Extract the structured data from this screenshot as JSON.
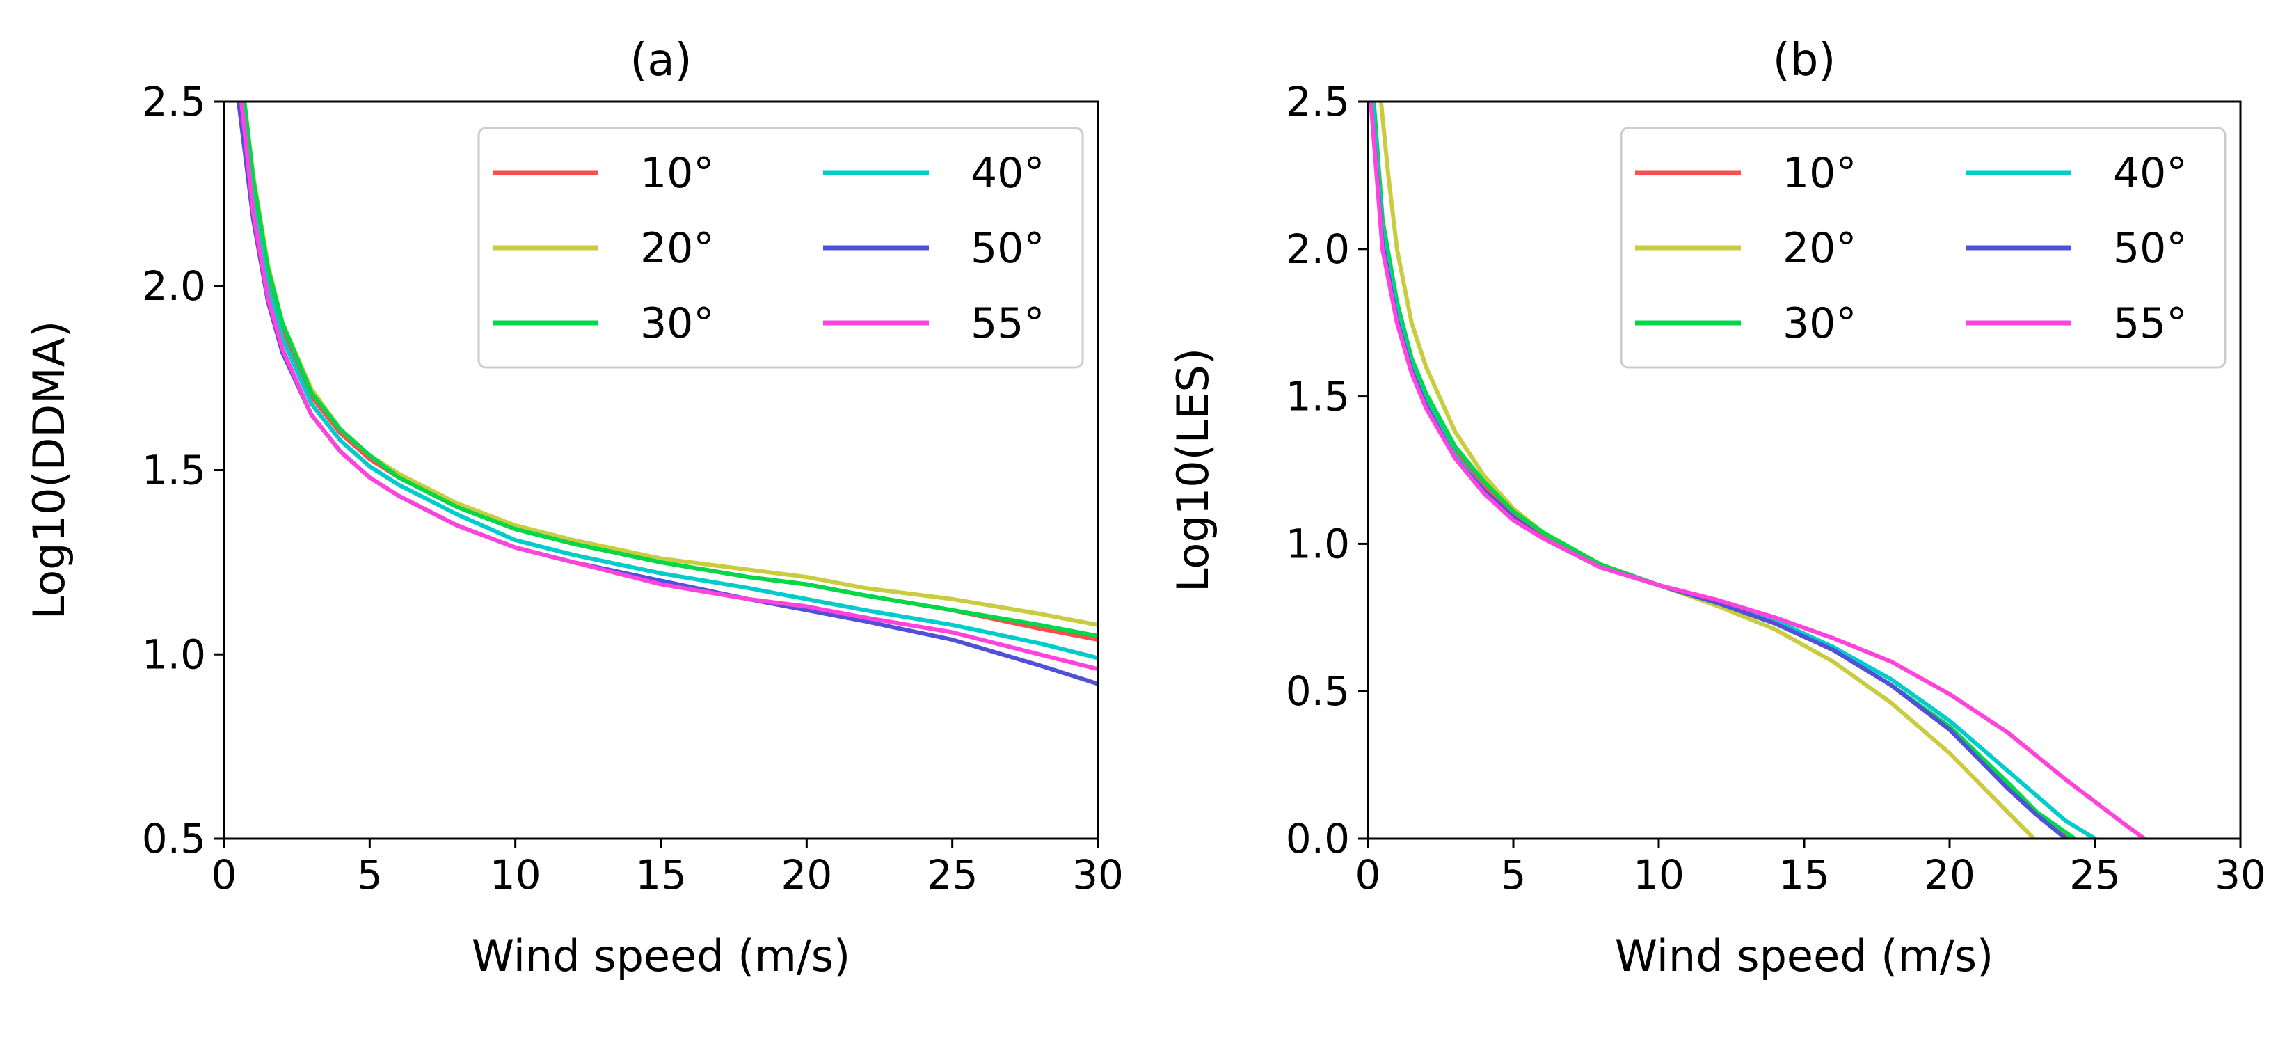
{
  "chart_data": [
    {
      "type": "line",
      "title": "(a)",
      "xlabel": "Wind speed (m/s)",
      "ylabel": "Log10(DDMA)",
      "xlim": [
        0,
        30
      ],
      "ylim": [
        0.5,
        2.5
      ],
      "xticks": [
        0,
        5,
        10,
        15,
        20,
        25,
        30
      ],
      "yticks": [
        0.5,
        1.0,
        1.5,
        2.0,
        2.5
      ],
      "xtick_labels": [
        "0",
        "5",
        "10",
        "15",
        "20",
        "25",
        "30"
      ],
      "ytick_labels": [
        "0.5",
        "1.0",
        "1.5",
        "2.0",
        "2.5"
      ],
      "legend_position": "top-right",
      "legend_columns": 2,
      "series": [
        {
          "name": "10°",
          "color": "#ff4d4d",
          "x": [
            0.6,
            1,
            1.5,
            2,
            3,
            4,
            5,
            6,
            8,
            10,
            12,
            15,
            18,
            20,
            22,
            25,
            28,
            30
          ],
          "y": [
            2.5,
            2.25,
            2.03,
            1.88,
            1.7,
            1.6,
            1.53,
            1.48,
            1.4,
            1.34,
            1.3,
            1.25,
            1.21,
            1.19,
            1.16,
            1.12,
            1.07,
            1.04
          ]
        },
        {
          "name": "20°",
          "color": "#c9cc3f",
          "x": [
            0.7,
            1,
            1.5,
            2,
            3,
            4,
            5,
            6,
            8,
            10,
            12,
            15,
            18,
            20,
            22,
            25,
            28,
            30
          ],
          "y": [
            2.5,
            2.3,
            2.06,
            1.9,
            1.72,
            1.61,
            1.54,
            1.49,
            1.41,
            1.35,
            1.31,
            1.26,
            1.23,
            1.21,
            1.18,
            1.15,
            1.11,
            1.08
          ]
        },
        {
          "name": "30°",
          "color": "#00d84a",
          "x": [
            0.7,
            1,
            1.5,
            2,
            3,
            4,
            5,
            6,
            8,
            10,
            12,
            15,
            18,
            20,
            22,
            25,
            28,
            30
          ],
          "y": [
            2.5,
            2.29,
            2.05,
            1.9,
            1.71,
            1.61,
            1.54,
            1.48,
            1.4,
            1.34,
            1.3,
            1.25,
            1.21,
            1.19,
            1.16,
            1.12,
            1.08,
            1.05
          ]
        },
        {
          "name": "40°",
          "color": "#00cccc",
          "x": [
            0.6,
            1,
            1.5,
            2,
            3,
            4,
            5,
            6,
            8,
            10,
            12,
            15,
            18,
            20,
            22,
            25,
            28,
            30
          ],
          "y": [
            2.5,
            2.22,
            2.0,
            1.86,
            1.68,
            1.58,
            1.51,
            1.46,
            1.38,
            1.31,
            1.27,
            1.22,
            1.18,
            1.15,
            1.12,
            1.08,
            1.03,
            0.99
          ]
        },
        {
          "name": "50°",
          "color": "#5050d8",
          "x": [
            0.5,
            1,
            1.5,
            2,
            3,
            4,
            5,
            6,
            8,
            10,
            12,
            15,
            18,
            20,
            22,
            25,
            28,
            30
          ],
          "y": [
            2.5,
            2.18,
            1.96,
            1.82,
            1.65,
            1.55,
            1.48,
            1.43,
            1.35,
            1.29,
            1.25,
            1.2,
            1.15,
            1.12,
            1.09,
            1.04,
            0.97,
            0.92
          ]
        },
        {
          "name": "55°",
          "color": "#ff44dd",
          "x": [
            0.6,
            1,
            1.5,
            2,
            3,
            4,
            5,
            6,
            8,
            10,
            12,
            15,
            18,
            20,
            22,
            25,
            28,
            30
          ],
          "y": [
            2.5,
            2.2,
            1.97,
            1.83,
            1.65,
            1.55,
            1.48,
            1.43,
            1.35,
            1.29,
            1.25,
            1.19,
            1.15,
            1.13,
            1.1,
            1.06,
            1.0,
            0.96
          ]
        }
      ]
    },
    {
      "type": "line",
      "title": "(b)",
      "xlabel": "Wind speed (m/s)",
      "ylabel": "Log10(LES)",
      "xlim": [
        0,
        30
      ],
      "ylim": [
        0.0,
        2.5
      ],
      "xticks": [
        0,
        5,
        10,
        15,
        20,
        25,
        30
      ],
      "yticks": [
        0.0,
        0.5,
        1.0,
        1.5,
        2.0,
        2.5
      ],
      "xtick_labels": [
        "0",
        "5",
        "10",
        "15",
        "20",
        "25",
        "30"
      ],
      "ytick_labels": [
        "0.0",
        "0.5",
        "1.0",
        "1.5",
        "2.0",
        "2.5"
      ],
      "legend_position": "top-right",
      "legend_columns": 2,
      "series": [
        {
          "name": "10°",
          "color": "#ff4d4d",
          "x": [
            0.2,
            0.5,
            1,
            1.5,
            2,
            3,
            4,
            5,
            6,
            8,
            10,
            12,
            14,
            16,
            18,
            20,
            22,
            23,
            24.1
          ],
          "y": [
            2.5,
            2.1,
            1.8,
            1.62,
            1.5,
            1.32,
            1.2,
            1.1,
            1.03,
            0.93,
            0.86,
            0.8,
            0.73,
            0.64,
            0.52,
            0.37,
            0.18,
            0.08,
            0.0
          ]
        },
        {
          "name": "20°",
          "color": "#c9cc3f",
          "x": [
            0.45,
            0.7,
            1,
            1.5,
            2,
            3,
            4,
            5,
            6,
            8,
            10,
            12,
            14,
            16,
            18,
            20,
            22,
            22.9
          ],
          "y": [
            2.5,
            2.25,
            2.0,
            1.75,
            1.6,
            1.38,
            1.23,
            1.12,
            1.04,
            0.93,
            0.86,
            0.79,
            0.71,
            0.6,
            0.46,
            0.29,
            0.09,
            0.0
          ]
        },
        {
          "name": "30°",
          "color": "#00d84a",
          "x": [
            0.2,
            0.5,
            1,
            1.5,
            2,
            3,
            4,
            5,
            6,
            8,
            10,
            12,
            14,
            16,
            18,
            20,
            22,
            23,
            24.3
          ],
          "y": [
            2.5,
            2.1,
            1.82,
            1.63,
            1.51,
            1.33,
            1.21,
            1.11,
            1.04,
            0.93,
            0.86,
            0.8,
            0.73,
            0.64,
            0.52,
            0.38,
            0.19,
            0.09,
            0.0
          ]
        },
        {
          "name": "40°",
          "color": "#00cccc",
          "x": [
            0.15,
            0.5,
            1,
            1.5,
            2,
            3,
            4,
            5,
            6,
            8,
            10,
            12,
            14,
            16,
            18,
            20,
            22,
            24,
            25.0
          ],
          "y": [
            2.5,
            2.05,
            1.78,
            1.6,
            1.48,
            1.3,
            1.18,
            1.09,
            1.02,
            0.92,
            0.86,
            0.8,
            0.74,
            0.65,
            0.54,
            0.4,
            0.23,
            0.06,
            0.0
          ]
        },
        {
          "name": "50°",
          "color": "#5050d8",
          "x": [
            0.1,
            0.5,
            1,
            1.5,
            2,
            3,
            4,
            5,
            6,
            8,
            10,
            12,
            14,
            16,
            18,
            20,
            22,
            23,
            24.0
          ],
          "y": [
            2.5,
            2.02,
            1.76,
            1.59,
            1.47,
            1.29,
            1.18,
            1.09,
            1.02,
            0.92,
            0.86,
            0.8,
            0.73,
            0.64,
            0.52,
            0.37,
            0.17,
            0.08,
            0.0
          ]
        },
        {
          "name": "55°",
          "color": "#ff44dd",
          "x": [
            0.1,
            0.5,
            1,
            1.5,
            2,
            3,
            4,
            5,
            6,
            8,
            10,
            12,
            14,
            16,
            18,
            20,
            22,
            24,
            26,
            26.7
          ],
          "y": [
            2.5,
            2.0,
            1.75,
            1.58,
            1.46,
            1.29,
            1.17,
            1.08,
            1.02,
            0.92,
            0.86,
            0.81,
            0.75,
            0.68,
            0.6,
            0.49,
            0.36,
            0.2,
            0.05,
            0.0
          ]
        }
      ]
    }
  ]
}
